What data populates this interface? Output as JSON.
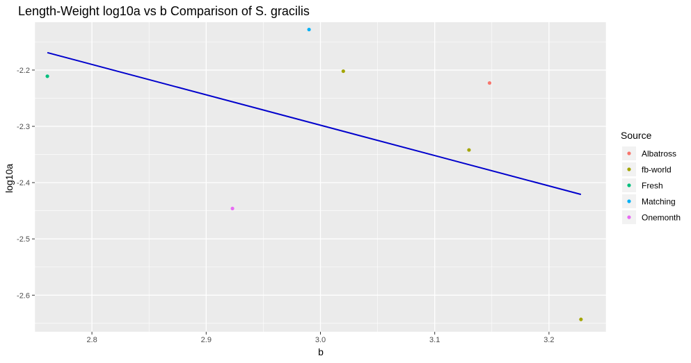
{
  "chart_data": {
    "type": "scatter",
    "title": "Length-Weight log10a vs b Comparison of S. gracilis",
    "xlabel": "b",
    "ylabel": "log10a",
    "xlim": [
      2.75,
      3.25
    ],
    "ylim": [
      -2.665,
      -2.115
    ],
    "x_ticks": [
      2.8,
      2.9,
      3.0,
      3.1,
      3.2
    ],
    "x_tick_labels": [
      "2.8",
      "2.9",
      "3.0",
      "3.1",
      "3.2"
    ],
    "y_ticks": [
      -2.2,
      -2.3,
      -2.4,
      -2.5,
      -2.6
    ],
    "y_tick_labels": [
      "-2.2",
      "-2.3",
      "-2.4",
      "-2.5",
      "-2.6"
    ],
    "grid": true,
    "legend": {
      "title": "Source",
      "position": "right",
      "entries": [
        {
          "name": "Albatross",
          "color": "#F8766D"
        },
        {
          "name": "fb-world",
          "color": "#A3A500"
        },
        {
          "name": "Fresh",
          "color": "#00BF7D"
        },
        {
          "name": "Matching",
          "color": "#00B0F6"
        },
        {
          "name": "Onemonth",
          "color": "#E76BF3"
        }
      ]
    },
    "points": [
      {
        "source": "Albatross",
        "x": 3.148,
        "y": -2.223
      },
      {
        "source": "fb-world",
        "x": 3.02,
        "y": -2.202
      },
      {
        "source": "fb-world",
        "x": 3.13,
        "y": -2.342
      },
      {
        "source": "fb-world",
        "x": 3.228,
        "y": -2.643
      },
      {
        "source": "Fresh",
        "x": 2.761,
        "y": -2.211
      },
      {
        "source": "Matching",
        "x": 2.99,
        "y": -2.128
      },
      {
        "source": "Onemonth",
        "x": 2.923,
        "y": -2.446
      }
    ],
    "trend_line": {
      "color": "#0000CC",
      "x": [
        2.761,
        3.228
      ],
      "y": [
        -2.169,
        -2.421
      ]
    }
  },
  "colors": {
    "panel_background": "#EBEBEB",
    "grid_line": "#FFFFFF"
  }
}
